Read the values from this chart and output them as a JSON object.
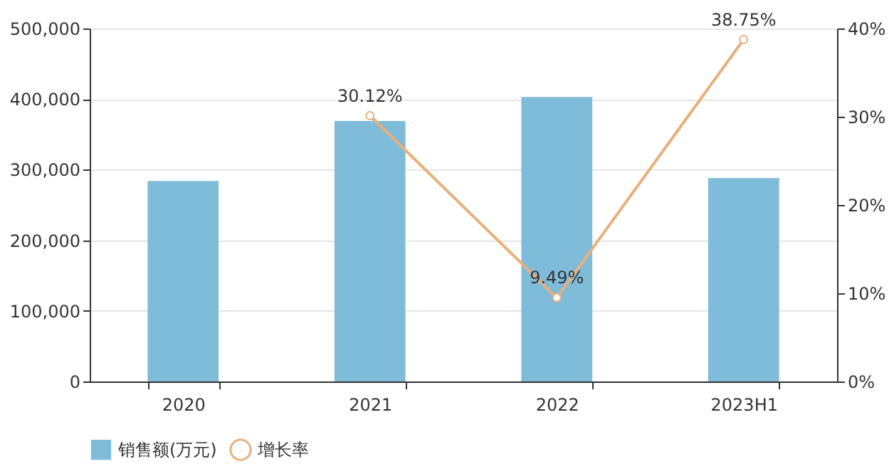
{
  "chart_data": {
    "type": "bar",
    "categories": [
      "2020",
      "2021",
      "2022",
      "2023H1"
    ],
    "series": [
      {
        "name": "销售额(万元)",
        "color": "#7fbcd9",
        "values": [
          284000,
          369000,
          403000,
          288000
        ]
      },
      {
        "type": "line",
        "name": "增长率",
        "color": "#e8b07a",
        "axis": "y2",
        "marker": "circle",
        "values": [
          null,
          30.12,
          9.49,
          38.75
        ],
        "value_labels": [
          null,
          "30.12%",
          "9.49%",
          "38.75%"
        ]
      }
    ],
    "ylim": [
      0,
      500000
    ],
    "yticks": [
      0,
      {
        "value": 100000,
        "label": "100,000"
      },
      {
        "value": 200000,
        "label": "200,000"
      },
      {
        "value": 300000,
        "label": "300,000"
      },
      {
        "value": 400000,
        "label": "400,000"
      },
      {
        "value": 500000,
        "label": "500,000"
      }
    ],
    "y2lim": [
      0,
      40
    ],
    "y2ticks": [
      {
        "value": 0,
        "label": "0%"
      },
      {
        "value": 10,
        "label": "10%"
      },
      {
        "value": 20,
        "label": "20%"
      },
      {
        "value": 30,
        "label": "30%"
      },
      {
        "value": 40,
        "label": "40%"
      }
    ],
    "grid": "y",
    "legend": "bottom"
  }
}
